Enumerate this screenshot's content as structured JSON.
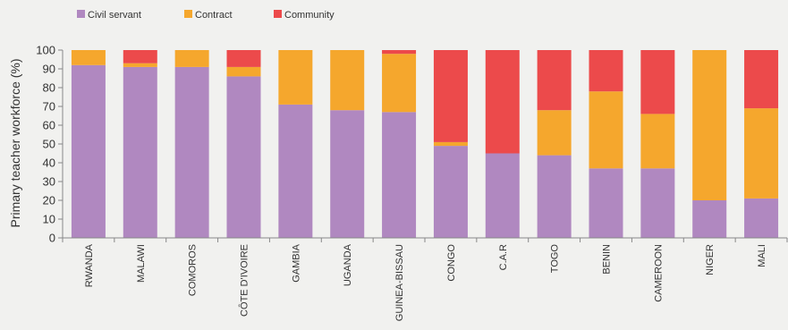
{
  "chart_data": {
    "type": "bar",
    "stacked": true,
    "title": "",
    "xlabel": "",
    "ylabel": "Primary teacher workforce (%)",
    "ylim": [
      0,
      100
    ],
    "yticks": [
      0,
      10,
      20,
      30,
      40,
      50,
      60,
      70,
      80,
      90,
      100
    ],
    "grid": false,
    "legend_position": "top-left",
    "categories": [
      "RWANDA",
      "MALAWI",
      "COMOROS",
      "CÔTE D'IVOIRE",
      "GAMBIA",
      "UGANDA",
      "GUINEA-BISSAU",
      "CONGO",
      "C.A.R",
      "TOGO",
      "BENIN",
      "CAMEROON",
      "NIGER",
      "MALI"
    ],
    "series": [
      {
        "name": "Civil servant",
        "color": "#b088c0",
        "values": [
          92,
          91,
          91,
          86,
          71,
          68,
          67,
          49,
          45,
          44,
          37,
          37,
          20,
          21
        ]
      },
      {
        "name": "Contract",
        "color": "#f5a72d",
        "values": [
          8,
          2,
          9,
          5,
          29,
          32,
          31,
          2,
          0,
          24,
          41,
          29,
          80,
          48
        ]
      },
      {
        "name": "Community",
        "color": "#ec4a4b",
        "values": [
          0,
          7,
          0,
          9,
          0,
          0,
          2,
          49,
          55,
          32,
          22,
          34,
          0,
          31
        ]
      }
    ]
  }
}
